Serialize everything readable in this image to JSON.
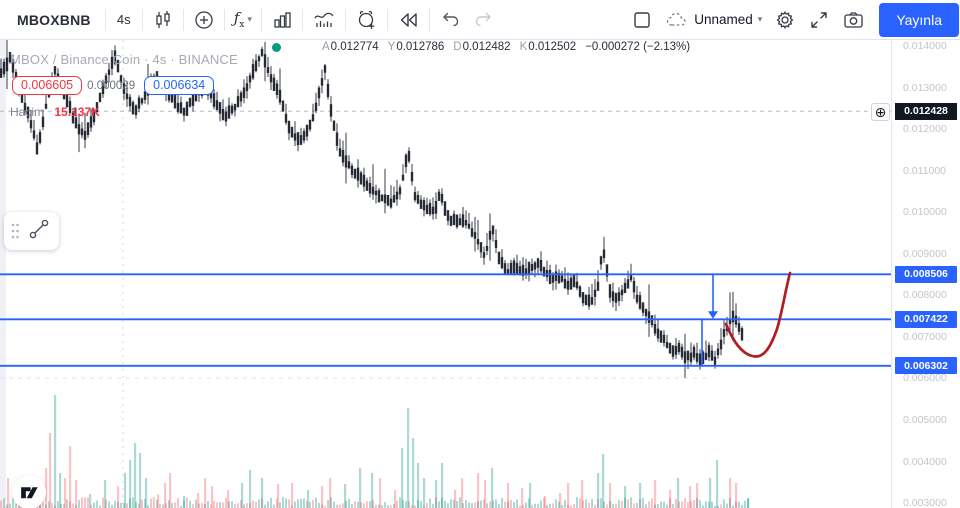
{
  "toolbar": {
    "symbol": "MBOXBNB",
    "interval": "4s",
    "layout_name": "Unnamed",
    "publish_label": "Yayınla"
  },
  "legend": {
    "title": "MBOX / Binance Coin · 4s · BINANCE",
    "open_label": "A",
    "open": "0.012774",
    "high_label": "Y",
    "high": "0.012786",
    "low_label": "D",
    "low": "0.012482",
    "close_label": "K",
    "close": "0.012502",
    "change": "−0.000272 (−2.13%)"
  },
  "measure": {
    "low": "0.006605",
    "diff": "0.000029",
    "high": "0.006634"
  },
  "volume": {
    "label": "Hacim",
    "value": "15.137K"
  },
  "axis": {
    "current_price": "0.012428",
    "plus_glyph": "⊕",
    "ticks": [
      "0.014000",
      "0.013000",
      "0.012000",
      "0.011000",
      "0.010000",
      "0.009000",
      "0.008000",
      "0.007000",
      "0.006000",
      "0.005000",
      "0.004000",
      "0.003000"
    ],
    "level_labels": [
      "0.008506",
      "0.007422",
      "0.006302"
    ]
  },
  "colors": {
    "accent_blue": "#2962ff",
    "down_red": "#f23645",
    "dark": "#131722",
    "bar_color": "#1c212c",
    "teal_dot": "#089981",
    "vol_up": "rgba(16,148,128,0.35)",
    "vol_down": "rgba(242,54,69,0.30)",
    "arrow_red": "#b01e24"
  },
  "chart_data": {
    "type": "candlestick",
    "title": "MBOX / Binance Coin · 4s · BINANCE",
    "exchange": "BINANCE",
    "interval": "4s",
    "ohlc": {
      "open": 0.012774,
      "high": 0.012786,
      "low": 0.012482,
      "close": 0.012502,
      "change": -0.000272,
      "change_pct": -2.13
    },
    "last_price": 0.012428,
    "volume_display": "15.137K",
    "y_axis": {
      "min": 0.003,
      "max": 0.014,
      "tick_step": 0.001,
      "grid": false
    },
    "horizontal_levels": [
      0.008506,
      0.007422,
      0.006302
    ],
    "measured_move": {
      "from": 0.006605,
      "to": 0.006634,
      "difference": 2.9e-05
    },
    "annotations": {
      "red_arrow": "hand-drawn curve projecting price up from ~0.0065 lows to the 0.008506 level",
      "blue_arrows": "vertical projection segments: 0.008506→0.007422 (arrow down) and 0.007422→0.006302"
    },
    "price_path": [
      [
        0,
        0.013302
      ],
      [
        10,
        0.013663
      ],
      [
        20,
        0.012941
      ],
      [
        30,
        0.012219
      ],
      [
        38,
        0.011449
      ],
      [
        45,
        0.01246
      ],
      [
        55,
        0.013374
      ],
      [
        65,
        0.012821
      ],
      [
        75,
        0.012171
      ],
      [
        85,
        0.011834
      ],
      [
        95,
        0.012339
      ],
      [
        105,
        0.013134
      ],
      [
        115,
        0.013735
      ],
      [
        125,
        0.012893
      ],
      [
        135,
        0.012411
      ],
      [
        145,
        0.012797
      ],
      [
        155,
        0.013278
      ],
      [
        165,
        0.012989
      ],
      [
        175,
        0.012652
      ],
      [
        185,
        0.012411
      ],
      [
        195,
        0.012772
      ],
      [
        205,
        0.013013
      ],
      [
        215,
        0.012652
      ],
      [
        225,
        0.012291
      ],
      [
        235,
        0.012531
      ],
      [
        245,
        0.012893
      ],
      [
        255,
        0.013494
      ],
      [
        262,
        0.013856
      ],
      [
        270,
        0.013254
      ],
      [
        280,
        0.012772
      ],
      [
        290,
        0.01193
      ],
      [
        300,
        0.011689
      ],
      [
        310,
        0.01205
      ],
      [
        320,
        0.012893
      ],
      [
        325,
        0.013422
      ],
      [
        332,
        0.012291
      ],
      [
        340,
        0.011449
      ],
      [
        350,
        0.011088
      ],
      [
        360,
        0.010847
      ],
      [
        370,
        0.010606
      ],
      [
        380,
        0.010365
      ],
      [
        390,
        0.010245
      ],
      [
        400,
        0.010486
      ],
      [
        408,
        0.011449
      ],
      [
        415,
        0.010365
      ],
      [
        425,
        0.010124
      ],
      [
        435,
        0.010004
      ],
      [
        440,
        0.010534
      ],
      [
        447,
        0.009884
      ],
      [
        455,
        0.009763
      ],
      [
        463,
        0.009811
      ],
      [
        470,
        0.009643
      ],
      [
        478,
        0.009282
      ],
      [
        485,
        0.008921
      ],
      [
        492,
        0.009643
      ],
      [
        500,
        0.0088
      ],
      [
        508,
        0.00856
      ],
      [
        515,
        0.008704
      ],
      [
        522,
        0.008536
      ],
      [
        530,
        0.008632
      ],
      [
        538,
        0.008777
      ],
      [
        545,
        0.008584
      ],
      [
        552,
        0.008367
      ],
      [
        560,
        0.008464
      ],
      [
        568,
        0.008199
      ],
      [
        575,
        0.008343
      ],
      [
        582,
        0.007958
      ],
      [
        590,
        0.007838
      ],
      [
        597,
        0.008078
      ],
      [
        603,
        0.00921
      ],
      [
        610,
        0.008078
      ],
      [
        617,
        0.007838
      ],
      [
        625,
        0.008199
      ],
      [
        631,
        0.00844
      ],
      [
        637,
        0.007958
      ],
      [
        645,
        0.007597
      ],
      [
        652,
        0.007356
      ],
      [
        658,
        0.007115
      ],
      [
        665,
        0.006875
      ],
      [
        672,
        0.006634
      ],
      [
        678,
        0.006754
      ],
      [
        684,
        0.006537
      ],
      [
        690,
        0.006465
      ],
      [
        695,
        0.00661
      ],
      [
        700,
        0.006417
      ],
      [
        705,
        0.006537
      ],
      [
        710,
        0.006658
      ],
      [
        715,
        0.006465
      ],
      [
        720,
        0.006778
      ],
      [
        725,
        0.007115
      ],
      [
        730,
        0.007356
      ],
      [
        735,
        0.007501
      ],
      [
        739,
        0.007236
      ],
      [
        743,
        0.006995
      ]
    ],
    "volume_spikes": [
      [
        8,
        30,
        "d"
      ],
      [
        20,
        22,
        "d"
      ],
      [
        33,
        16,
        "d"
      ],
      [
        40,
        25,
        "d"
      ],
      [
        46,
        40,
        "d"
      ],
      [
        50,
        75,
        "d"
      ],
      [
        55,
        113,
        "u"
      ],
      [
        60,
        35,
        "u"
      ],
      [
        65,
        30,
        "d"
      ],
      [
        70,
        62,
        "d"
      ],
      [
        76,
        28,
        "d"
      ],
      [
        90,
        14,
        "u"
      ],
      [
        105,
        28,
        "u"
      ],
      [
        118,
        22,
        "d"
      ],
      [
        125,
        35,
        "u"
      ],
      [
        130,
        48,
        "u"
      ],
      [
        135,
        65,
        "u"
      ],
      [
        140,
        55,
        "u"
      ],
      [
        146,
        30,
        "u"
      ],
      [
        158,
        14,
        "d"
      ],
      [
        165,
        25,
        "d"
      ],
      [
        170,
        35,
        "d"
      ],
      [
        184,
        12,
        "u"
      ],
      [
        198,
        15,
        "d"
      ],
      [
        205,
        30,
        "d"
      ],
      [
        212,
        22,
        "d"
      ],
      [
        228,
        18,
        "d"
      ],
      [
        242,
        25,
        "u"
      ],
      [
        250,
        38,
        "u"
      ],
      [
        262,
        30,
        "u"
      ],
      [
        278,
        24,
        "d"
      ],
      [
        292,
        25,
        "d"
      ],
      [
        308,
        18,
        "u"
      ],
      [
        322,
        22,
        "d"
      ],
      [
        330,
        30,
        "d"
      ],
      [
        345,
        24,
        "u"
      ],
      [
        360,
        40,
        "u"
      ],
      [
        372,
        35,
        "u"
      ],
      [
        380,
        30,
        "d"
      ],
      [
        395,
        18,
        "d"
      ],
      [
        402,
        60,
        "u"
      ],
      [
        408,
        100,
        "u"
      ],
      [
        413,
        70,
        "u"
      ],
      [
        418,
        45,
        "u"
      ],
      [
        424,
        30,
        "u"
      ],
      [
        436,
        28,
        "u"
      ],
      [
        442,
        45,
        "u"
      ],
      [
        455,
        18,
        "d"
      ],
      [
        462,
        30,
        "d"
      ],
      [
        478,
        35,
        "d"
      ],
      [
        485,
        28,
        "d"
      ],
      [
        492,
        40,
        "u"
      ],
      [
        508,
        25,
        "d"
      ],
      [
        522,
        20,
        "d"
      ],
      [
        530,
        25,
        "u"
      ],
      [
        545,
        12,
        "d"
      ],
      [
        560,
        15,
        "d"
      ],
      [
        568,
        25,
        "d"
      ],
      [
        582,
        28,
        "d"
      ],
      [
        598,
        35,
        "u"
      ],
      [
        603,
        54,
        "u"
      ],
      [
        610,
        25,
        "d"
      ],
      [
        625,
        22,
        "u"
      ],
      [
        640,
        25,
        "u"
      ],
      [
        655,
        28,
        "d"
      ],
      [
        670,
        18,
        "d"
      ],
      [
        678,
        30,
        "u"
      ],
      [
        690,
        22,
        "d"
      ],
      [
        697,
        25,
        "d"
      ],
      [
        710,
        30,
        "u"
      ],
      [
        717,
        48,
        "u"
      ],
      [
        730,
        30,
        "d"
      ],
      [
        736,
        25,
        "d"
      ],
      [
        748,
        10,
        "u"
      ]
    ]
  }
}
